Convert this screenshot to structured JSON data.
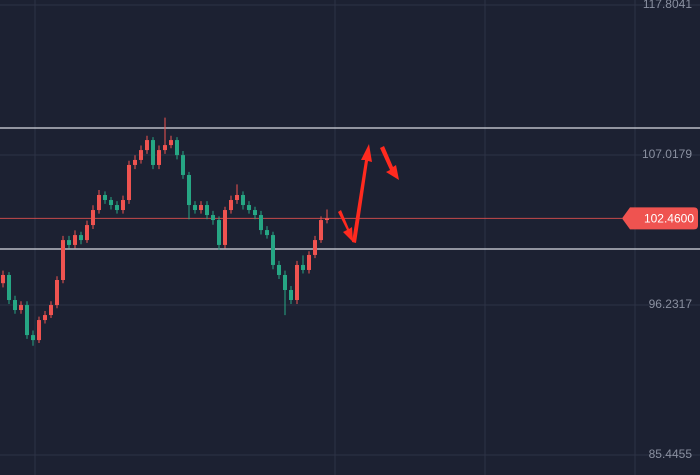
{
  "chart_data": {
    "type": "candlestick",
    "ylim": [
      84.01,
      118.16
    ],
    "yticks": [
      117.8041,
      107.0179,
      96.2317,
      85.4455
    ],
    "grid": true,
    "up_color": "#ef5350",
    "down_color": "#26a684",
    "level_color": "#d8dbe2",
    "levels": [
      108.96,
      100.26
    ],
    "last_price": {
      "value": 102.46,
      "label": "102.4600"
    },
    "candles": [
      [
        97.8,
        98.7,
        97.5,
        98.39
      ],
      [
        98.39,
        98.6,
        96.3,
        96.59
      ],
      [
        96.59,
        96.9,
        95.6,
        95.87
      ],
      [
        95.87,
        96.5,
        95.6,
        96.23
      ],
      [
        96.23,
        96.5,
        93.8,
        94.07
      ],
      [
        94.07,
        94.4,
        93.3,
        93.71
      ],
      [
        93.71,
        95.4,
        93.5,
        95.15
      ],
      [
        95.15,
        95.8,
        94.9,
        95.51
      ],
      [
        95.51,
        96.5,
        95.3,
        96.23
      ],
      [
        96.23,
        98.3,
        96.0,
        98.03
      ],
      [
        98.03,
        101.2,
        97.8,
        100.9
      ],
      [
        100.9,
        101.2,
        100.3,
        100.55
      ],
      [
        100.55,
        101.6,
        100.3,
        101.26
      ],
      [
        101.26,
        101.5,
        100.6,
        100.9
      ],
      [
        100.9,
        102.3,
        100.7,
        101.98
      ],
      [
        101.98,
        103.4,
        101.7,
        103.06
      ],
      [
        103.06,
        104.5,
        102.8,
        104.14
      ],
      [
        104.14,
        104.4,
        103.5,
        103.78
      ],
      [
        103.78,
        104.0,
        103.1,
        103.42
      ],
      [
        103.42,
        103.7,
        102.8,
        103.06
      ],
      [
        103.06,
        104.1,
        102.8,
        103.78
      ],
      [
        103.78,
        106.6,
        103.5,
        106.3
      ],
      [
        106.3,
        107.0,
        106.0,
        106.66
      ],
      [
        106.66,
        107.7,
        106.4,
        107.37
      ],
      [
        107.37,
        108.4,
        107.1,
        108.09
      ],
      [
        108.09,
        108.3,
        106.0,
        106.3
      ],
      [
        106.3,
        107.7,
        106.0,
        107.37
      ],
      [
        107.37,
        109.7,
        107.1,
        107.73
      ],
      [
        107.73,
        108.4,
        107.5,
        108.09
      ],
      [
        108.09,
        108.3,
        106.7,
        107.01
      ],
      [
        107.01,
        107.3,
        105.3,
        105.58
      ],
      [
        105.58,
        105.8,
        102.4,
        103.42
      ],
      [
        103.42,
        103.7,
        102.8,
        103.06
      ],
      [
        103.06,
        103.7,
        102.8,
        103.42
      ],
      [
        103.42,
        103.7,
        102.4,
        102.7
      ],
      [
        102.7,
        103.0,
        102.0,
        102.34
      ],
      [
        102.34,
        102.6,
        100.2,
        100.55
      ],
      [
        100.55,
        103.3,
        100.3,
        103.06
      ],
      [
        103.06,
        104.1,
        102.8,
        103.78
      ],
      [
        103.78,
        104.9,
        103.5,
        104.14
      ],
      [
        104.14,
        104.4,
        103.1,
        103.42
      ],
      [
        103.42,
        103.7,
        102.8,
        103.06
      ],
      [
        103.06,
        103.3,
        102.4,
        102.7
      ],
      [
        102.7,
        103.0,
        101.3,
        101.62
      ],
      [
        101.62,
        101.9,
        101.0,
        101.26
      ],
      [
        101.26,
        101.5,
        98.8,
        99.11
      ],
      [
        99.11,
        99.4,
        98.1,
        98.39
      ],
      [
        98.39,
        98.7,
        95.5,
        97.31
      ],
      [
        97.31,
        97.6,
        96.3,
        96.59
      ],
      [
        96.59,
        99.4,
        96.3,
        99.11
      ],
      [
        99.11,
        99.8,
        98.5,
        98.75
      ],
      [
        98.75,
        100.1,
        98.5,
        99.83
      ],
      [
        99.83,
        101.2,
        99.6,
        100.9
      ],
      [
        100.9,
        102.6,
        100.7,
        102.34
      ],
      [
        102.34,
        103.1,
        102.1,
        102.46
      ]
    ]
  }
}
